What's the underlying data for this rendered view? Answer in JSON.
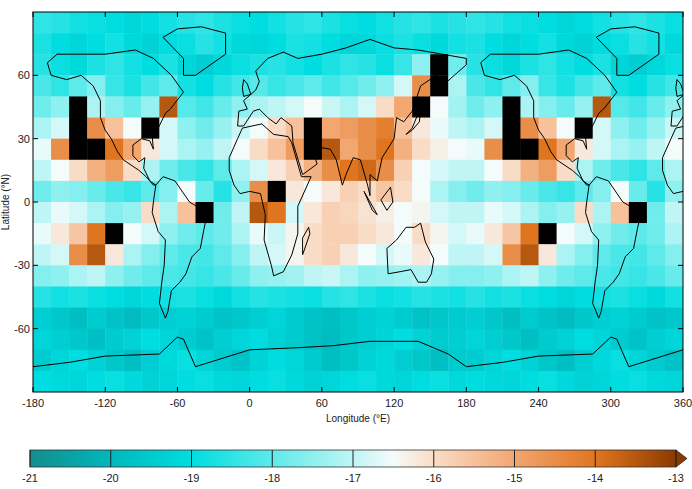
{
  "chart_data": {
    "type": "heatmap",
    "x_label": "Longitude (°E)",
    "y_label": "Latitude (°N)",
    "xlim": [
      -180,
      360
    ],
    "ylim": [
      -90,
      90
    ],
    "xticks": [
      -180,
      -120,
      -60,
      0,
      60,
      120,
      180,
      240,
      300,
      360
    ],
    "yticks": [
      -60,
      -30,
      0,
      30,
      60
    ],
    "x": [
      -172.5,
      -157.5,
      -142.5,
      -127.5,
      -112.5,
      -97.5,
      -82.5,
      -67.5,
      -52.5,
      -37.5,
      -22.5,
      -7.5,
      7.5,
      22.5,
      37.5,
      52.5,
      67.5,
      82.5,
      97.5,
      112.5,
      127.5,
      142.5,
      157.5,
      172.5,
      187.5,
      202.5,
      217.5,
      232.5,
      247.5,
      262.5,
      277.5,
      292.5,
      307.5,
      322.5,
      337.5,
      352.5
    ],
    "y": [
      85,
      75,
      65,
      55,
      45,
      35,
      25,
      15,
      5,
      -5,
      -15,
      -25,
      -35,
      -45,
      -55,
      -65,
      -75,
      -85
    ],
    "cells": [
      [
        -18.5,
        -18.6,
        -18.8,
        -18.9,
        -19.0,
        -19.2,
        -19.0,
        -18.8,
        -18.6,
        -18.5,
        -18.7,
        -18.9,
        -19.0,
        -18.8,
        -18.6,
        -18.5,
        -18.7,
        -18.9,
        -19.0,
        -18.8,
        -18.6,
        -18.5,
        -18.7,
        -18.6,
        -18.5,
        -18.6,
        -18.8,
        -18.9,
        -19.0,
        -19.2,
        -19.0,
        -18.8,
        -18.6,
        -18.5,
        -18.7,
        -18.9
      ],
      [
        -18.7,
        -19.0,
        -19.2,
        -19.0,
        -18.8,
        -19.1,
        -19.3,
        -19.0,
        -18.9,
        -18.6,
        -18.8,
        -19.1,
        -19.2,
        -19.0,
        -18.7,
        -18.8,
        -19.0,
        -19.2,
        -19.1,
        -18.9,
        -18.7,
        -18.9,
        -19.1,
        -18.8,
        -18.7,
        -19.0,
        -19.2,
        -19.0,
        -18.8,
        -19.1,
        -19.3,
        -19.0,
        -18.9,
        -18.6,
        -18.8,
        -19.1
      ],
      [
        -18.6,
        -18.9,
        -19.1,
        -18.7,
        -18.5,
        -18.8,
        -19.0,
        -18.7,
        -19.2,
        -19.4,
        -19.1,
        -18.9,
        -18.7,
        -18.6,
        -18.8,
        -19.0,
        -18.7,
        -18.5,
        -18.6,
        -18.9,
        -18.4,
        -17.5,
        -12.5,
        -17.8,
        -18.6,
        -18.9,
        -19.1,
        -18.7,
        -18.5,
        -18.8,
        -19.0,
        -18.7,
        -19.2,
        -19.4,
        -19.1,
        -18.9
      ],
      [
        -18.2,
        -18.5,
        -18.0,
        -17.6,
        -18.4,
        -18.7,
        -18.3,
        -18.0,
        -18.8,
        -19.0,
        -18.6,
        -18.3,
        -18.1,
        -18.4,
        -18.2,
        -18.0,
        -18.3,
        -18.1,
        -17.8,
        -17.5,
        -16.8,
        -14.5,
        -12.5,
        -17.2,
        -18.2,
        -18.5,
        -18.0,
        -17.6,
        -18.4,
        -18.7,
        -18.3,
        -18.0,
        -18.8,
        -19.0,
        -18.6,
        -18.3
      ],
      [
        -17.8,
        -17.5,
        -12.5,
        -17.2,
        -17.6,
        -17.9,
        -17.4,
        -13.5,
        -18.1,
        -18.3,
        -17.9,
        -17.5,
        -17.2,
        -17.0,
        -16.8,
        -16.5,
        -16.9,
        -17.2,
        -16.8,
        -16.0,
        -15.0,
        -12.5,
        -16.5,
        -17.3,
        -17.8,
        -17.5,
        -12.5,
        -17.2,
        -17.6,
        -17.9,
        -17.4,
        -13.5,
        -18.1,
        -18.3,
        -17.9,
        -17.5
      ],
      [
        -17.2,
        -16.8,
        -12.5,
        -14.5,
        -15.5,
        -16.5,
        -12.5,
        -16.8,
        -17.5,
        -17.8,
        -17.4,
        -16.9,
        -16.5,
        -16.0,
        -15.5,
        -12.5,
        -15.0,
        -14.8,
        -14.5,
        -14.2,
        -15.5,
        -16.2,
        -16.6,
        -17.0,
        -17.2,
        -16.8,
        -12.5,
        -14.5,
        -15.5,
        -16.5,
        -12.5,
        -16.8,
        -17.5,
        -17.8,
        -17.4,
        -16.9
      ],
      [
        -16.6,
        -14.5,
        -12.5,
        -12.5,
        -14.0,
        -15.0,
        -16.2,
        -16.8,
        -17.2,
        -17.4,
        -17.0,
        -16.5,
        -16.0,
        -15.5,
        -14.8,
        -12.5,
        -13.5,
        -15.0,
        -14.5,
        -14.0,
        -15.2,
        -16.0,
        -16.3,
        -16.5,
        -16.6,
        -14.5,
        -12.5,
        -12.5,
        -14.0,
        -15.0,
        -16.2,
        -16.8,
        -17.2,
        -17.4,
        -17.0,
        -16.5
      ],
      [
        -17.0,
        -16.5,
        -16.0,
        -15.2,
        -14.8,
        -16.0,
        -17.2,
        -17.8,
        -18.2,
        -18.5,
        -18.0,
        -17.2,
        -16.8,
        -16.2,
        -15.8,
        -15.2,
        -14.5,
        -14.0,
        -13.8,
        -14.5,
        -15.8,
        -16.5,
        -16.8,
        -17.0,
        -17.0,
        -16.5,
        -16.0,
        -15.2,
        -14.8,
        -16.0,
        -17.2,
        -17.8,
        -18.2,
        -18.5,
        -18.0,
        -17.2
      ],
      [
        -17.8,
        -17.5,
        -17.6,
        -17.9,
        -18.2,
        -18.4,
        -18.0,
        -17.6,
        -16.5,
        -17.9,
        -18.6,
        -17.5,
        -14.5,
        -12.5,
        -16.2,
        -16.5,
        -16.2,
        -15.8,
        -16.0,
        -15.6,
        -16.0,
        -16.5,
        -17.2,
        -17.6,
        -17.8,
        -17.5,
        -17.6,
        -17.9,
        -18.2,
        -18.4,
        -18.0,
        -17.6,
        -16.5,
        -17.9,
        -18.6,
        -17.5
      ],
      [
        -17.0,
        -16.6,
        -16.8,
        -17.2,
        -17.6,
        -17.4,
        -16.0,
        -17.2,
        -15.5,
        -12.5,
        -17.8,
        -17.0,
        -13.5,
        -14.0,
        -16.8,
        -16.2,
        -15.8,
        -15.9,
        -16.1,
        -16.3,
        -16.5,
        -16.4,
        -16.8,
        -17.0,
        -17.0,
        -16.6,
        -16.8,
        -17.2,
        -17.6,
        -17.4,
        -16.0,
        -17.2,
        -15.5,
        -12.5,
        -17.8,
        -17.0
      ],
      [
        -16.6,
        -16.2,
        -15.6,
        -14.0,
        -12.5,
        -16.5,
        -16.8,
        -17.5,
        -17.8,
        -18.0,
        -17.8,
        -17.2,
        -16.6,
        -16.9,
        -16.4,
        -16.0,
        -15.8,
        -15.8,
        -16.0,
        -16.2,
        -16.5,
        -16.0,
        -16.4,
        -16.8,
        -16.6,
        -16.2,
        -15.6,
        -14.0,
        -12.5,
        -16.5,
        -16.8,
        -17.5,
        -17.8,
        -18.0,
        -17.8,
        -17.2
      ],
      [
        -17.0,
        -16.8,
        -14.5,
        -13.5,
        -16.2,
        -17.2,
        -17.6,
        -18.0,
        -18.2,
        -18.3,
        -18.0,
        -17.6,
        -17.0,
        -16.8,
        -16.4,
        -16.0,
        -15.8,
        -16.2,
        -16.5,
        -16.8,
        -16.6,
        -16.2,
        -16.5,
        -17.0,
        -17.0,
        -16.8,
        -14.5,
        -13.5,
        -16.2,
        -17.2,
        -17.6,
        -18.0,
        -18.2,
        -18.3,
        -18.0,
        -17.6
      ],
      [
        -17.6,
        -17.5,
        -17.2,
        -17.0,
        -17.5,
        -17.8,
        -18.0,
        -18.2,
        -18.3,
        -18.4,
        -18.2,
        -17.9,
        -17.5,
        -17.4,
        -17.3,
        -17.0,
        -16.9,
        -17.2,
        -17.5,
        -17.4,
        -17.3,
        -17.2,
        -17.4,
        -17.6,
        -17.6,
        -17.5,
        -17.2,
        -17.0,
        -17.5,
        -17.8,
        -18.0,
        -18.2,
        -18.3,
        -18.4,
        -18.2,
        -17.9
      ],
      [
        -18.6,
        -18.8,
        -18.7,
        -18.9,
        -19.0,
        -19.2,
        -19.0,
        -18.8,
        -18.7,
        -18.9,
        -19.1,
        -18.8,
        -18.6,
        -18.7,
        -18.8,
        -18.9,
        -18.6,
        -18.5,
        -18.7,
        -18.9,
        -18.8,
        -18.6,
        -18.7,
        -18.8,
        -18.6,
        -18.8,
        -18.7,
        -18.9,
        -19.0,
        -19.2,
        -19.0,
        -18.8,
        -18.7,
        -18.9,
        -19.1,
        -18.8
      ],
      [
        -19.4,
        -19.6,
        -19.8,
        -19.5,
        -19.7,
        -19.9,
        -19.6,
        -19.4,
        -19.3,
        -19.5,
        -19.7,
        -19.6,
        -19.4,
        -19.2,
        -19.5,
        -19.7,
        -19.8,
        -19.6,
        -19.4,
        -19.3,
        -19.5,
        -19.7,
        -19.6,
        -19.5,
        -19.4,
        -19.6,
        -19.8,
        -19.5,
        -19.7,
        -19.9,
        -19.6,
        -19.4,
        -19.3,
        -19.5,
        -19.7,
        -19.6
      ],
      [
        -19.2,
        -19.4,
        -19.6,
        -19.8,
        -19.5,
        -19.3,
        -19.0,
        -19.2,
        -19.5,
        -19.7,
        -19.4,
        -19.2,
        -19.0,
        -19.3,
        -19.5,
        -19.7,
        -19.9,
        -19.6,
        -19.4,
        -19.2,
        -19.0,
        -19.3,
        -19.5,
        -19.4,
        -19.2,
        -19.4,
        -19.6,
        -19.8,
        -19.5,
        -19.3,
        -19.0,
        -19.2,
        -19.5,
        -19.7,
        -19.4,
        -19.2
      ],
      [
        -19.5,
        -19.2,
        -19.0,
        -19.3,
        -19.6,
        -19.8,
        -19.4,
        -19.1,
        -18.9,
        -19.2,
        -19.5,
        -19.7,
        -19.3,
        -19.0,
        -19.2,
        -19.5,
        -19.8,
        -19.6,
        -19.3,
        -19.1,
        -19.4,
        -19.6,
        -19.8,
        -19.5,
        -19.5,
        -19.2,
        -19.0,
        -19.3,
        -19.6,
        -19.8,
        -19.4,
        -19.1,
        -18.9,
        -19.2,
        -19.5,
        -19.7
      ],
      [
        -19.0,
        -19.1,
        -19.2,
        -19.0,
        -18.9,
        -19.1,
        -19.3,
        -19.2,
        -19.0,
        -18.9,
        -19.1,
        -19.2,
        -19.0,
        -18.9,
        -19.1,
        -19.3,
        -19.2,
        -19.0,
        -18.9,
        -19.1,
        -19.2,
        -19.0,
        -18.9,
        -19.1,
        -19.0,
        -19.1,
        -19.2,
        -19.0,
        -18.9,
        -19.1,
        -19.3,
        -19.2,
        -19.0,
        -18.9,
        -19.1,
        -19.2
      ]
    ],
    "colorbar": {
      "range": [
        -21,
        -13
      ],
      "ticks": [
        -21,
        -20,
        -19,
        -18,
        -17,
        -16,
        -15,
        -14,
        -13
      ]
    }
  }
}
